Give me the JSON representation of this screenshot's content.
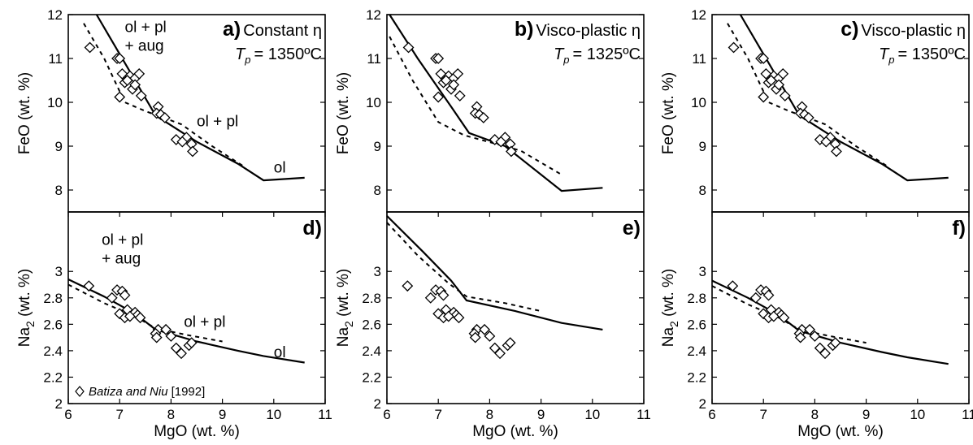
{
  "panels": [
    {
      "id": "a",
      "label": "a)",
      "title": "Constant η",
      "tp_value": "= 1350ºC",
      "xlim": [
        6,
        11
      ],
      "ylim": [
        7.5,
        12
      ],
      "yticks": [
        8,
        9,
        10,
        11,
        12
      ],
      "ylabel": "FeO (wt. %)",
      "xticks": [],
      "xlabel": "",
      "annotations": [
        {
          "text": "ol + pl",
          "x": 7.1,
          "y": 11.6
        },
        {
          "text": "+ aug",
          "x": 7.1,
          "y": 11.18
        },
        {
          "text": "ol + pl",
          "x": 8.5,
          "y": 9.45
        },
        {
          "text": "ol",
          "x": 10.0,
          "y": 8.4
        }
      ],
      "legend": null,
      "model_solid": [
        [
          6.55,
          12.0
        ],
        [
          7.0,
          11.1
        ],
        [
          7.35,
          10.4
        ],
        [
          7.7,
          9.7
        ],
        [
          8.5,
          9.1
        ],
        [
          9.3,
          8.6
        ],
        [
          9.8,
          8.22
        ],
        [
          10.6,
          8.28
        ]
      ],
      "model_dashed": [
        [
          6.3,
          11.8
        ],
        [
          6.7,
          11.0
        ],
        [
          7.1,
          10.0
        ],
        [
          7.5,
          9.8
        ],
        [
          8.2,
          9.5
        ],
        [
          8.8,
          9.0
        ],
        [
          9.4,
          8.55
        ]
      ],
      "observed": [
        [
          6.42,
          11.25
        ],
        [
          6.95,
          11.0
        ],
        [
          7.0,
          11.0
        ],
        [
          7.05,
          10.65
        ],
        [
          7.2,
          10.6
        ],
        [
          7.3,
          10.55
        ],
        [
          7.38,
          10.65
        ],
        [
          7.1,
          10.45
        ],
        [
          7.25,
          10.3
        ],
        [
          7.15,
          10.5
        ],
        [
          7.0,
          10.12
        ],
        [
          7.42,
          10.15
        ],
        [
          7.3,
          10.4
        ],
        [
          7.75,
          9.9
        ],
        [
          7.72,
          9.75
        ],
        [
          7.8,
          9.72
        ],
        [
          7.88,
          9.65
        ],
        [
          8.1,
          9.15
        ],
        [
          8.3,
          9.2
        ],
        [
          8.22,
          9.1
        ],
        [
          8.4,
          9.05
        ],
        [
          8.42,
          8.88
        ]
      ]
    },
    {
      "id": "b",
      "label": "b)",
      "title": "Visco-plastic η",
      "tp_value": "= 1325ºC",
      "xlim": [
        6,
        11
      ],
      "ylim": [
        7.5,
        12
      ],
      "yticks": [
        8,
        9,
        10,
        11,
        12
      ],
      "ylabel": "FeO (wt. %)",
      "xticks": [],
      "xlabel": "",
      "annotations": [],
      "legend": null,
      "model_solid": [
        [
          6.05,
          12.0
        ],
        [
          6.6,
          11.0
        ],
        [
          7.25,
          9.9
        ],
        [
          7.6,
          9.3
        ],
        [
          8.3,
          9.0
        ],
        [
          9.4,
          7.98
        ],
        [
          10.2,
          8.05
        ]
      ],
      "model_dashed": [
        [
          6.05,
          11.5
        ],
        [
          6.5,
          10.5
        ],
        [
          7.0,
          9.55
        ],
        [
          7.5,
          9.25
        ],
        [
          8.6,
          8.9
        ],
        [
          9.4,
          8.35
        ]
      ],
      "observed": [
        [
          6.42,
          11.25
        ],
        [
          6.95,
          11.0
        ],
        [
          7.0,
          11.0
        ],
        [
          7.05,
          10.65
        ],
        [
          7.2,
          10.6
        ],
        [
          7.3,
          10.55
        ],
        [
          7.38,
          10.65
        ],
        [
          7.1,
          10.45
        ],
        [
          7.25,
          10.3
        ],
        [
          7.15,
          10.5
        ],
        [
          7.0,
          10.12
        ],
        [
          7.42,
          10.15
        ],
        [
          7.3,
          10.4
        ],
        [
          7.75,
          9.9
        ],
        [
          7.72,
          9.75
        ],
        [
          7.8,
          9.72
        ],
        [
          7.88,
          9.65
        ],
        [
          8.1,
          9.15
        ],
        [
          8.3,
          9.2
        ],
        [
          8.22,
          9.1
        ],
        [
          8.4,
          9.05
        ],
        [
          8.42,
          8.88
        ]
      ]
    },
    {
      "id": "c",
      "label": "c)",
      "title": "Visco-plastic η",
      "tp_value": "= 1350ºC",
      "xlim": [
        6,
        11
      ],
      "ylim": [
        7.5,
        12
      ],
      "yticks": [
        8,
        9,
        10,
        11,
        12
      ],
      "ylabel": "FeO (wt. %)",
      "xticks": [],
      "xlabel": "",
      "annotations": [],
      "legend": null,
      "model_solid": [
        [
          6.55,
          12.0
        ],
        [
          7.0,
          11.1
        ],
        [
          7.35,
          10.4
        ],
        [
          7.7,
          9.7
        ],
        [
          8.5,
          9.1
        ],
        [
          9.3,
          8.6
        ],
        [
          9.8,
          8.22
        ],
        [
          10.6,
          8.28
        ]
      ],
      "model_dashed": [
        [
          6.3,
          11.8
        ],
        [
          6.7,
          11.0
        ],
        [
          7.1,
          10.0
        ],
        [
          7.5,
          9.8
        ],
        [
          8.2,
          9.5
        ],
        [
          8.8,
          9.0
        ],
        [
          9.4,
          8.55
        ]
      ],
      "observed": [
        [
          6.42,
          11.25
        ],
        [
          6.95,
          11.0
        ],
        [
          7.0,
          11.0
        ],
        [
          7.05,
          10.65
        ],
        [
          7.2,
          10.6
        ],
        [
          7.3,
          10.55
        ],
        [
          7.38,
          10.65
        ],
        [
          7.1,
          10.45
        ],
        [
          7.25,
          10.3
        ],
        [
          7.15,
          10.5
        ],
        [
          7.0,
          10.12
        ],
        [
          7.42,
          10.15
        ],
        [
          7.3,
          10.4
        ],
        [
          7.75,
          9.9
        ],
        [
          7.72,
          9.75
        ],
        [
          7.8,
          9.72
        ],
        [
          7.88,
          9.65
        ],
        [
          8.1,
          9.15
        ],
        [
          8.3,
          9.2
        ],
        [
          8.22,
          9.1
        ],
        [
          8.4,
          9.05
        ],
        [
          8.42,
          8.88
        ]
      ]
    },
    {
      "id": "d",
      "label": "d)",
      "title": "",
      "tp_value": "",
      "xlim": [
        6,
        11
      ],
      "ylim": [
        2,
        3.45
      ],
      "yticks": [
        2,
        2.2,
        2.4,
        2.6,
        2.8,
        3
      ],
      "ylabel": "Na2O (wt. %)",
      "xticks": [
        6,
        7,
        8,
        9,
        10,
        11
      ],
      "xlabel": "MgO (wt. %)",
      "annotations": [
        {
          "text": "ol + pl",
          "x": 6.65,
          "y": 3.2
        },
        {
          "text": "+ aug",
          "x": 6.65,
          "y": 3.06
        },
        {
          "text": "ol + pl",
          "x": 8.25,
          "y": 2.58
        },
        {
          "text": "ol",
          "x": 10.0,
          "y": 2.35
        }
      ],
      "legend": {
        "text": "Batiza and Niu",
        "ref": "[1992]"
      },
      "model_solid": [
        [
          6.0,
          2.94
        ],
        [
          6.7,
          2.81
        ],
        [
          7.3,
          2.68
        ],
        [
          7.7,
          2.56
        ],
        [
          8.5,
          2.47
        ],
        [
          9.3,
          2.4
        ],
        [
          9.8,
          2.36
        ],
        [
          10.6,
          2.31
        ]
      ],
      "model_dashed": [
        [
          6.0,
          2.9
        ],
        [
          6.7,
          2.76
        ],
        [
          7.3,
          2.66
        ],
        [
          7.7,
          2.57
        ],
        [
          8.3,
          2.52
        ],
        [
          9.0,
          2.47
        ]
      ],
      "observed": [
        [
          6.4,
          2.89
        ],
        [
          6.95,
          2.86
        ],
        [
          7.05,
          2.85
        ],
        [
          7.1,
          2.82
        ],
        [
          6.85,
          2.8
        ],
        [
          7.15,
          2.71
        ],
        [
          7.0,
          2.68
        ],
        [
          7.3,
          2.69
        ],
        [
          7.35,
          2.67
        ],
        [
          7.1,
          2.65
        ],
        [
          7.2,
          2.66
        ],
        [
          7.4,
          2.65
        ],
        [
          7.75,
          2.56
        ],
        [
          7.7,
          2.53
        ],
        [
          7.72,
          2.5
        ],
        [
          7.9,
          2.56
        ],
        [
          8.0,
          2.51
        ],
        [
          8.1,
          2.42
        ],
        [
          8.2,
          2.38
        ],
        [
          8.35,
          2.44
        ],
        [
          8.4,
          2.46
        ]
      ]
    },
    {
      "id": "e",
      "label": "e)",
      "title": "",
      "tp_value": "",
      "xlim": [
        6,
        11
      ],
      "ylim": [
        2,
        3.45
      ],
      "yticks": [
        2,
        2.2,
        2.4,
        2.6,
        2.8,
        3
      ],
      "ylabel": "Na2O (wt. %)",
      "xticks": [
        6,
        7,
        8,
        9,
        10,
        11
      ],
      "xlabel": "MgO (wt. %)",
      "annotations": [],
      "legend": null,
      "model_solid": [
        [
          6.0,
          3.42
        ],
        [
          6.7,
          3.15
        ],
        [
          7.25,
          2.93
        ],
        [
          7.55,
          2.78
        ],
        [
          8.5,
          2.7
        ],
        [
          9.4,
          2.61
        ],
        [
          10.2,
          2.56
        ]
      ],
      "model_dashed": [
        [
          6.0,
          3.37
        ],
        [
          6.6,
          3.12
        ],
        [
          7.2,
          2.91
        ],
        [
          7.55,
          2.81
        ],
        [
          8.3,
          2.76
        ],
        [
          9.0,
          2.7
        ]
      ],
      "observed": [
        [
          6.4,
          2.89
        ],
        [
          6.95,
          2.86
        ],
        [
          7.05,
          2.85
        ],
        [
          7.1,
          2.82
        ],
        [
          6.85,
          2.8
        ],
        [
          7.15,
          2.71
        ],
        [
          7.0,
          2.68
        ],
        [
          7.3,
          2.69
        ],
        [
          7.35,
          2.67
        ],
        [
          7.1,
          2.65
        ],
        [
          7.2,
          2.66
        ],
        [
          7.4,
          2.65
        ],
        [
          7.75,
          2.56
        ],
        [
          7.7,
          2.53
        ],
        [
          7.72,
          2.5
        ],
        [
          7.9,
          2.56
        ],
        [
          8.0,
          2.51
        ],
        [
          8.1,
          2.42
        ],
        [
          8.2,
          2.38
        ],
        [
          8.35,
          2.44
        ],
        [
          8.4,
          2.46
        ]
      ]
    },
    {
      "id": "f",
      "label": "f)",
      "title": "",
      "tp_value": "",
      "xlim": [
        6,
        11
      ],
      "ylim": [
        2,
        3.45
      ],
      "yticks": [
        2,
        2.2,
        2.4,
        2.6,
        2.8,
        3
      ],
      "ylabel": "Na2O (wt. %)",
      "xticks": [
        6,
        7,
        8,
        9,
        10,
        11
      ],
      "xlabel": "MgO (wt. %)",
      "annotations": [],
      "legend": null,
      "model_solid": [
        [
          6.0,
          2.93
        ],
        [
          6.7,
          2.8
        ],
        [
          7.3,
          2.67
        ],
        [
          7.7,
          2.55
        ],
        [
          8.5,
          2.46
        ],
        [
          9.3,
          2.39
        ],
        [
          9.8,
          2.35
        ],
        [
          10.6,
          2.3
        ]
      ],
      "model_dashed": [
        [
          6.0,
          2.89
        ],
        [
          6.7,
          2.75
        ],
        [
          7.3,
          2.65
        ],
        [
          7.7,
          2.56
        ],
        [
          8.3,
          2.51
        ],
        [
          9.0,
          2.46
        ]
      ],
      "observed": [
        [
          6.4,
          2.89
        ],
        [
          6.95,
          2.86
        ],
        [
          7.05,
          2.85
        ],
        [
          7.1,
          2.82
        ],
        [
          6.85,
          2.8
        ],
        [
          7.15,
          2.71
        ],
        [
          7.0,
          2.68
        ],
        [
          7.3,
          2.69
        ],
        [
          7.35,
          2.67
        ],
        [
          7.1,
          2.65
        ],
        [
          7.2,
          2.66
        ],
        [
          7.4,
          2.65
        ],
        [
          7.75,
          2.56
        ],
        [
          7.7,
          2.53
        ],
        [
          7.72,
          2.5
        ],
        [
          7.9,
          2.56
        ],
        [
          8.0,
          2.51
        ],
        [
          8.1,
          2.42
        ],
        [
          8.2,
          2.38
        ],
        [
          8.35,
          2.44
        ],
        [
          8.4,
          2.46
        ]
      ]
    }
  ],
  "chart_data": [
    {
      "type": "line",
      "panel": "a",
      "xlabel": "",
      "ylabel": "FeO (wt. %)",
      "xlim": [
        6,
        11
      ],
      "ylim": [
        7.5,
        12
      ],
      "grid": false
    },
    {
      "type": "line",
      "panel": "b",
      "xlabel": "",
      "ylabel": "FeO (wt. %)",
      "xlim": [
        6,
        11
      ],
      "ylim": [
        7.5,
        12
      ],
      "grid": false
    },
    {
      "type": "line",
      "panel": "c",
      "xlabel": "",
      "ylabel": "FeO (wt. %)",
      "xlim": [
        6,
        11
      ],
      "ylim": [
        7.5,
        12
      ],
      "grid": false
    },
    {
      "type": "line",
      "panel": "d",
      "xlabel": "MgO (wt. %)",
      "ylabel": "Na2O (wt. %)",
      "xlim": [
        6,
        11
      ],
      "ylim": [
        2,
        3.45
      ],
      "grid": false,
      "legend": "bottom-left"
    },
    {
      "type": "line",
      "panel": "e",
      "xlabel": "MgO (wt. %)",
      "ylabel": "Na2O (wt. %)",
      "xlim": [
        6,
        11
      ],
      "ylim": [
        2,
        3.45
      ],
      "grid": false
    },
    {
      "type": "line",
      "panel": "f",
      "xlabel": "MgO (wt. %)",
      "ylabel": "Na2O (wt. %)",
      "xlim": [
        6,
        11
      ],
      "ylim": [
        2,
        3.45
      ],
      "grid": false
    }
  ]
}
